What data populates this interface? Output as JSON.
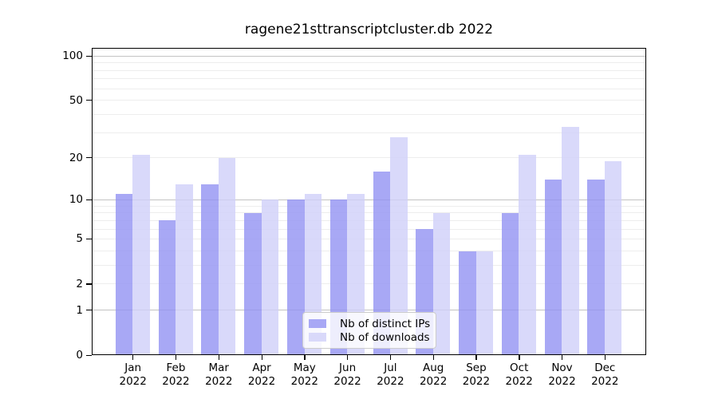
{
  "chart_data": {
    "type": "bar",
    "title": "ragene21sttranscriptcluster.db 2022",
    "categories": [
      "Jan",
      "Feb",
      "Mar",
      "Apr",
      "May",
      "Jun",
      "Jul",
      "Aug",
      "Sep",
      "Oct",
      "Nov",
      "Dec"
    ],
    "year": "2022",
    "series": [
      {
        "name": "Nb of distinct IPs",
        "color": "#a8a8f5",
        "bar_rgba": "rgba(146,146,243,0.8)",
        "values": [
          11,
          7,
          13,
          8,
          10,
          10,
          16,
          6,
          4,
          8,
          14,
          14
        ]
      },
      {
        "name": "Nb of downloads",
        "color": "#d9d9fa",
        "bar_rgba": "rgba(208,208,249,0.8)",
        "values": [
          21,
          13,
          20,
          10,
          11,
          11,
          28,
          8,
          4,
          21,
          33,
          19
        ]
      }
    ],
    "yscale": "log1p",
    "ylim": [
      0,
      100
    ],
    "yticks": [
      100,
      50,
      20,
      10,
      5,
      2,
      1,
      0
    ],
    "minor_grid_values": [
      2,
      3,
      4,
      5,
      6,
      7,
      8,
      9,
      20,
      30,
      40,
      50,
      60,
      70,
      80,
      90
    ],
    "major_grid_values": [
      1,
      10,
      100
    ],
    "legend_position": "lower center",
    "grid": true
  }
}
